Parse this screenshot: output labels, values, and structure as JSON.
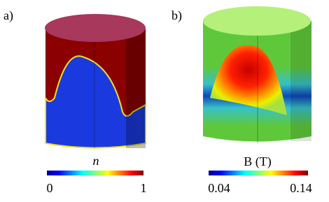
{
  "panels": [
    {
      "label": "a)",
      "colorbar": {
        "title": "n",
        "ticks": [
          "0",
          "1"
        ]
      }
    },
    {
      "label": "b)",
      "colorbar": {
        "title": "B (T)",
        "ticks": [
          "0.04",
          "0.14"
        ]
      }
    }
  ]
}
